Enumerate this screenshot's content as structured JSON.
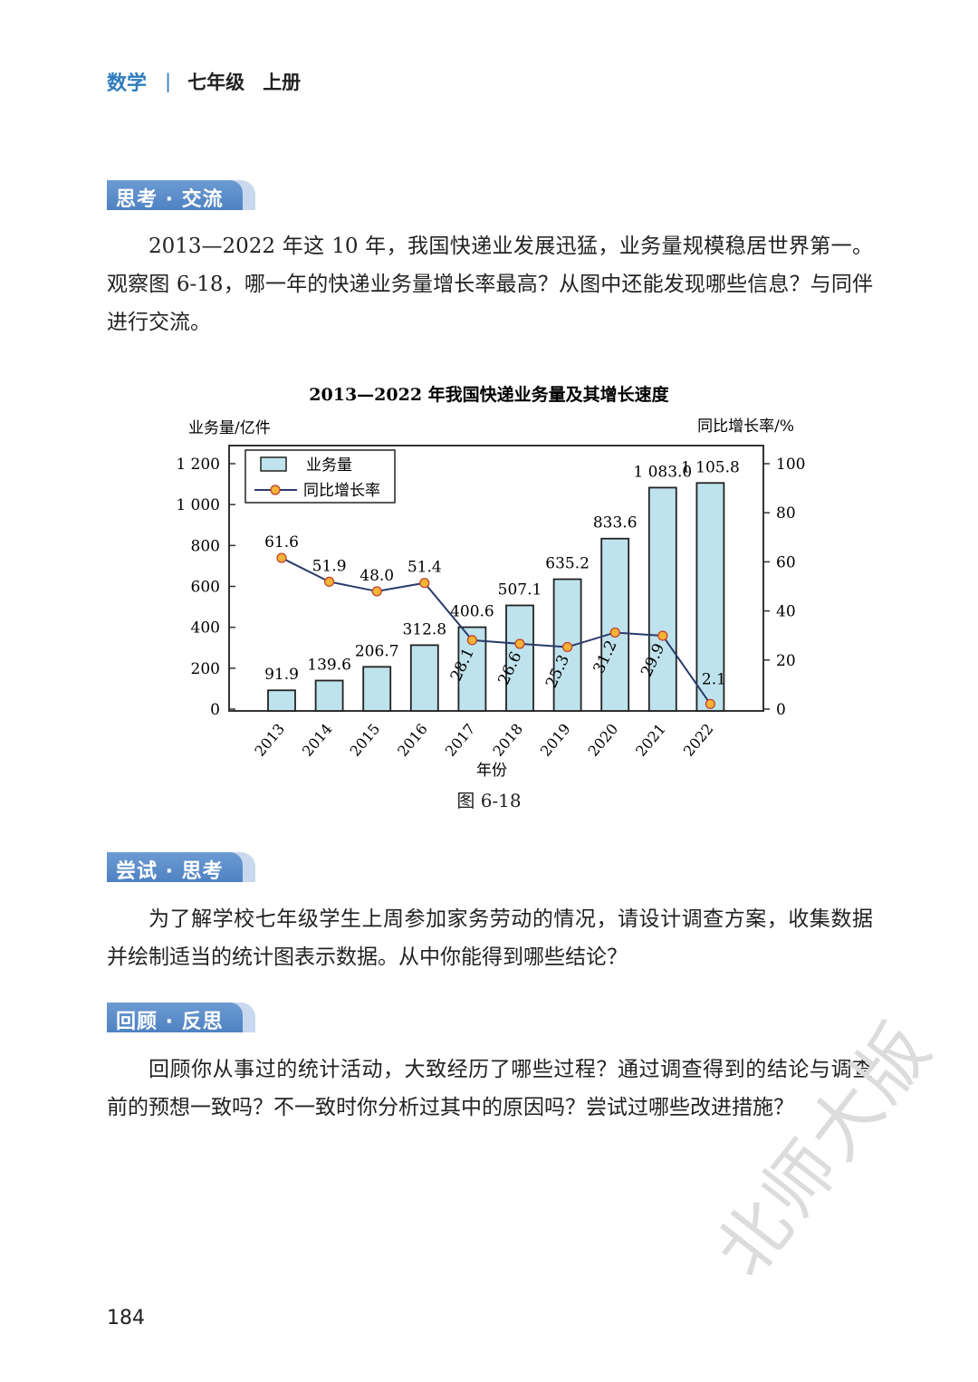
{
  "header": {
    "subject": "数学",
    "separator": "|",
    "grade": "七年级",
    "volume": "上册"
  },
  "sections": [
    {
      "badge": "思考 · 交流",
      "text": "2013—2022 年这 10 年，我国快递业发展迅猛，业务量规模稳居世界第一。观察图 6-18，哪一年的快递业务量增长率最高？从图中还能发现哪些信息？与同伴进行交流。"
    },
    {
      "badge": "尝试 · 思考",
      "text": "为了解学校七年级学生上周参加家务劳动的情况，请设计调查方案，收集数据并绘制适当的统计图表示数据。从中你能得到哪些结论？"
    },
    {
      "badge": "回顾 · 反思",
      "text": "回顾你从事过的统计活动，大致经历了哪些过程？通过调查得到的结论与调查前的预想一致吗？不一致时你分析过其中的原因吗？尝试过哪些改进措施？"
    }
  ],
  "figure_caption": "图 6-18",
  "page_number": "184",
  "watermark": "北师大版",
  "colors": {
    "accent": "#4f82c2",
    "bar_fill": "#bfe3ec",
    "line": "#2b3a6b",
    "marker": "#f5b335"
  },
  "chart_data": {
    "type": "bar+line",
    "title": "2013—2022 年我国快递业务量及其增长速度",
    "xlabel": "年份",
    "ylabel": "业务量/亿件",
    "y2label": "同比增长率/%",
    "categories": [
      "2013",
      "2014",
      "2015",
      "2016",
      "2017",
      "2018",
      "2019",
      "2020",
      "2021",
      "2022"
    ],
    "series": [
      {
        "name": "业务量",
        "type": "bar",
        "axis": "left",
        "values": [
          91.9,
          139.6,
          206.7,
          312.8,
          400.6,
          507.1,
          635.2,
          833.6,
          1083.0,
          1105.8
        ],
        "labels": [
          "91.9",
          "139.6",
          "206.7",
          "312.8",
          "400.6",
          "507.1",
          "635.2",
          "833.6",
          "1 083.0",
          "1 105.8"
        ]
      },
      {
        "name": "同比增长率",
        "type": "line",
        "axis": "right",
        "values": [
          61.6,
          51.9,
          48.0,
          51.4,
          28.1,
          26.6,
          25.3,
          31.2,
          29.9,
          2.1
        ],
        "labels": [
          "61.6",
          "51.9",
          "48.0",
          "51.4",
          "28.1",
          "26.6",
          "25.3",
          "31.2",
          "29.9",
          "2.1"
        ]
      }
    ],
    "ylim": [
      0,
      1200
    ],
    "yticks": [
      "0",
      "200",
      "400",
      "600",
      "800",
      "1 000",
      "1 200"
    ],
    "y2lim": [
      0,
      100
    ],
    "y2ticks": [
      "0",
      "20",
      "40",
      "60",
      "80",
      "100"
    ],
    "grid": false,
    "legend": "top-left"
  }
}
